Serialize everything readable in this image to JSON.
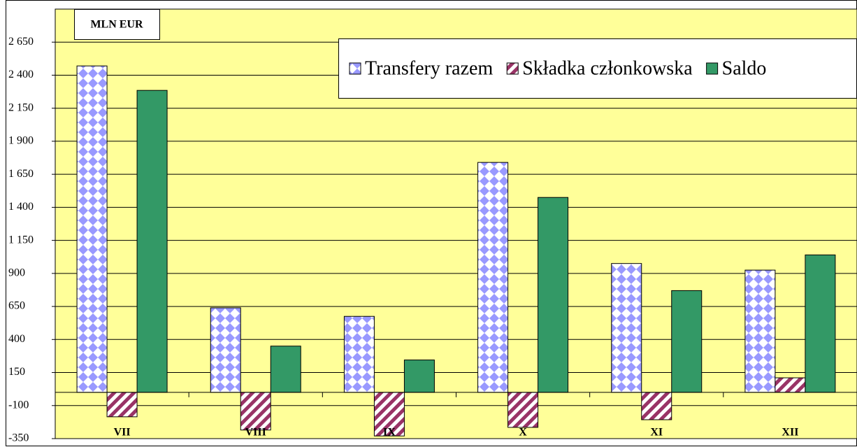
{
  "chart_data": {
    "type": "bar",
    "title": "MLN EUR",
    "categories": [
      "VII",
      "VIII",
      "IX",
      "X",
      "XI",
      "XII"
    ],
    "series": [
      {
        "name": "Transfery razem",
        "color": "#9999ff",
        "values": [
          2470,
          640,
          575,
          1740,
          975,
          925
        ]
      },
      {
        "name": "Składka członkowska",
        "color": "#993366",
        "values": [
          -185,
          -285,
          -330,
          -265,
          -207,
          110
        ]
      },
      {
        "name": "Saldo",
        "color": "#339966",
        "values": [
          2285,
          350,
          245,
          1475,
          770,
          1040
        ]
      }
    ],
    "ylim": [
      -350,
      2900
    ],
    "yticks": [
      -350,
      -100,
      150,
      400,
      650,
      900,
      {
        "value": 1150,
        "label": "1 150"
      },
      {
        "value": 1400,
        "label": "1 400"
      },
      {
        "value": 1650,
        "label": "1 650"
      },
      {
        "value": 1900,
        "label": "1 900"
      },
      {
        "value": 2150,
        "label": "2 150"
      },
      {
        "value": 2400,
        "label": "2 400"
      },
      {
        "value": 2650,
        "label": "2 650"
      }
    ],
    "grid": true,
    "legend": "top-right"
  }
}
